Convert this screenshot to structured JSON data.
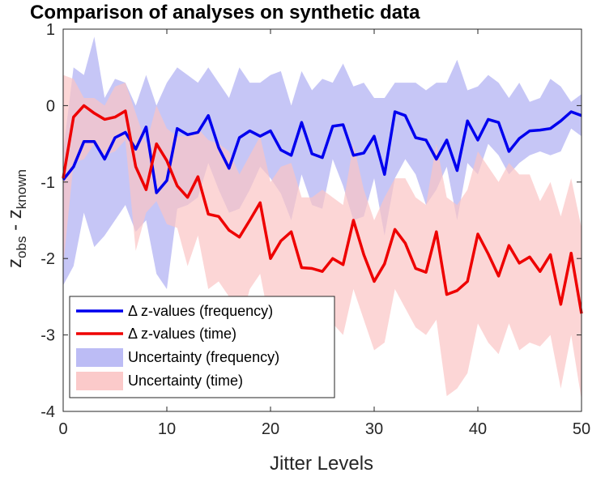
{
  "chart_data": {
    "type": "line",
    "title": "Comparison of analyses on synthetic data",
    "xlabel": "Jitter Levels",
    "ylabel_main": "z",
    "ylabel_sub1": "obs",
    "ylabel_mid": " - z",
    "ylabel_sub2": "known",
    "xlim": [
      0,
      50
    ],
    "ylim": [
      -4,
      1
    ],
    "xticks": [
      0,
      10,
      20,
      30,
      40,
      50
    ],
    "yticks": [
      -4,
      -3,
      -2,
      -1,
      0,
      1
    ],
    "xtick_labels": [
      "0",
      "10",
      "20",
      "30",
      "40",
      "50"
    ],
    "ytick_labels": [
      "-4",
      "-3",
      "-2",
      "-1",
      "0",
      "1"
    ],
    "x": [
      0,
      1,
      2,
      3,
      4,
      5,
      6,
      7,
      8,
      9,
      10,
      11,
      12,
      13,
      14,
      15,
      16,
      17,
      18,
      19,
      20,
      21,
      22,
      23,
      24,
      25,
      26,
      27,
      28,
      29,
      30,
      31,
      32,
      33,
      34,
      35,
      36,
      37,
      38,
      39,
      40,
      41,
      42,
      43,
      44,
      45,
      46,
      47,
      48,
      49,
      50
    ],
    "series": [
      {
        "name": "Δ z-values (frequency)",
        "color": "#0000ee",
        "values": [
          -0.97,
          -0.8,
          -0.47,
          -0.47,
          -0.7,
          -0.42,
          -0.35,
          -0.57,
          -0.28,
          -1.14,
          -0.98,
          -0.3,
          -0.38,
          -0.35,
          -0.13,
          -0.55,
          -0.82,
          -0.42,
          -0.33,
          -0.4,
          -0.33,
          -0.58,
          -0.65,
          -0.22,
          -0.63,
          -0.68,
          -0.27,
          -0.25,
          -0.65,
          -0.62,
          -0.4,
          -0.9,
          -0.08,
          -0.13,
          -0.42,
          -0.45,
          -0.7,
          -0.45,
          -0.85,
          -0.2,
          -0.45,
          -0.18,
          -0.22,
          -0.6,
          -0.43,
          -0.33,
          -0.32,
          -0.3,
          -0.2,
          -0.08,
          -0.13
        ]
      },
      {
        "name": "Δ z-values (time)",
        "color": "#ee0000",
        "values": [
          -0.95,
          -0.15,
          0.0,
          -0.1,
          -0.18,
          -0.15,
          -0.07,
          -0.8,
          -1.1,
          -0.5,
          -0.72,
          -1.05,
          -1.2,
          -0.93,
          -1.42,
          -1.45,
          -1.63,
          -1.72,
          -1.5,
          -1.27,
          -2.0,
          -1.77,
          -1.65,
          -2.12,
          -2.13,
          -2.17,
          -2.0,
          -2.08,
          -1.5,
          -1.95,
          -2.3,
          -2.07,
          -1.62,
          -1.8,
          -2.13,
          -2.18,
          -1.65,
          -2.47,
          -2.42,
          -2.3,
          -1.68,
          -1.94,
          -2.23,
          -1.83,
          -2.06,
          -1.98,
          -2.17,
          -1.95,
          -2.6,
          -1.93,
          -2.72
        ]
      }
    ],
    "bands": [
      {
        "name": "Uncertainty (frequency)",
        "color": "#bcbcf5",
        "upper": [
          -0.6,
          0.5,
          0.4,
          0.9,
          0.1,
          0.35,
          0.3,
          0.0,
          0.4,
          0.0,
          0.3,
          0.5,
          0.4,
          0.3,
          0.5,
          0.3,
          0.1,
          0.5,
          0.3,
          0.3,
          0.4,
          0.45,
          0.0,
          0.45,
          0.2,
          0.35,
          0.3,
          0.55,
          0.25,
          0.3,
          0.1,
          0.1,
          0.3,
          0.3,
          0.3,
          0.2,
          0.3,
          0.3,
          0.6,
          0.2,
          0.25,
          0.4,
          0.3,
          0.1,
          0.3,
          0.05,
          0.1,
          0.35,
          0.25,
          0.05,
          0.15
        ],
        "lower": [
          -2.35,
          -2.1,
          -1.4,
          -1.85,
          -1.7,
          -1.5,
          -1.3,
          -1.65,
          -1.5,
          -2.2,
          -2.4,
          -1.35,
          -1.3,
          -1.2,
          -0.75,
          -1.1,
          -1.4,
          -1.35,
          -1.1,
          -0.8,
          -0.95,
          -1.15,
          -1.5,
          -0.9,
          -1.3,
          -1.35,
          -0.7,
          -1.05,
          -1.5,
          -1.45,
          -0.95,
          -1.7,
          -0.95,
          -0.7,
          -0.9,
          -1.3,
          -1.1,
          -0.8,
          -1.5,
          -0.75,
          -0.9,
          -0.5,
          -0.65,
          -0.9,
          -0.75,
          -0.65,
          -0.6,
          -0.65,
          -0.6,
          -0.3,
          -0.4
        ]
      },
      {
        "name": "Uncertainty (time)",
        "color": "#fbc4c4",
        "upper": [
          0.4,
          0.35,
          0.1,
          0.1,
          0.0,
          0.25,
          0.3,
          -0.1,
          -0.5,
          0.0,
          -0.3,
          -0.4,
          -0.4,
          -0.3,
          -0.45,
          -0.5,
          -0.6,
          -0.9,
          -0.65,
          -0.4,
          -1.0,
          -0.8,
          -0.75,
          -1.2,
          -1.2,
          -1.1,
          -1.2,
          -1.3,
          -0.5,
          -1.1,
          -1.5,
          -1.2,
          -0.95,
          -0.95,
          -1.2,
          -1.3,
          -0.5,
          -1.2,
          -1.3,
          -1.1,
          -0.6,
          -0.8,
          -1.0,
          -0.75,
          -0.9,
          -0.9,
          -1.25,
          -1.0,
          -1.45,
          -0.95,
          -1.6
        ],
        "lower": [
          -2.1,
          -0.75,
          -0.7,
          -0.5,
          -0.65,
          -0.6,
          -0.45,
          -1.9,
          -1.4,
          -1.25,
          -1.55,
          -1.6,
          -2.1,
          -1.7,
          -2.4,
          -2.3,
          -2.5,
          -2.9,
          -2.4,
          -2.2,
          -2.9,
          -2.9,
          -2.6,
          -3.05,
          -3.05,
          -3.25,
          -2.85,
          -3.0,
          -2.4,
          -2.8,
          -3.2,
          -3.1,
          -2.4,
          -2.65,
          -2.9,
          -3.0,
          -2.8,
          -3.8,
          -3.7,
          -3.5,
          -2.85,
          -3.1,
          -3.25,
          -2.85,
          -3.2,
          -3.1,
          -3.15,
          -3.0,
          -3.7,
          -3.0,
          -3.85
        ]
      }
    ],
    "legend": {
      "position": "bottom-left",
      "entries": [
        "Δ z-values (frequency)",
        "Δ z-values (time)",
        "Uncertainty (frequency)",
        "Uncertainty (time)"
      ]
    },
    "grid": false
  }
}
